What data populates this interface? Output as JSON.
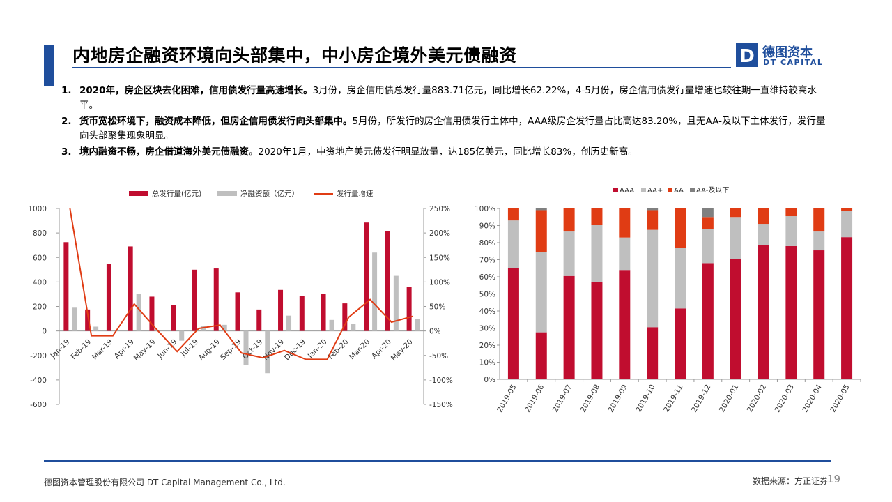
{
  "header": {
    "title": "内地房企融资环境向头部集中，中小房企境外美元债融资",
    "logo_cn": "德图资本",
    "logo_en": "DT CAPITAL",
    "logo_letter": "D"
  },
  "bullets": [
    {
      "num": "1.",
      "bold": "2020年，房企区块去化困难，信用债发行量高速增长。",
      "text": "3月份，房企信用债总发行量883.71亿元，同比增长62.22%，4-5月份，房企信用债发行量增速也较往期一直维持较高水平。"
    },
    {
      "num": "2.",
      "bold": "货币宽松环境下，融资成本降低，但房企信用债发行向头部集中。",
      "text": "5月份，所发行的房企信用债发行主体中，AAA级房企发行量占比高达83.20%，且无AA-及以下主体发行，发行量向头部聚集现象明显。"
    },
    {
      "num": "3.",
      "bold": "境内融资不畅，房企借道海外美元债融资。",
      "text": "2020年1月，中资地产美元债发行明显放量，达185亿美元，同比增长83%，创历史新高。"
    }
  ],
  "colors": {
    "brand": "#1f4e9c",
    "red": "#c00d2f",
    "gray": "#bfbfbf",
    "orange": "#e03c14",
    "darkgray": "#808080"
  },
  "chart_data": [
    {
      "type": "bar",
      "categories": [
        "Jan-19",
        "Feb-19",
        "Mar-19",
        "Apr-19",
        "May-19",
        "Jun-19",
        "Jul-19",
        "Aug-19",
        "Sep-19",
        "Oct-19",
        "Nov-19",
        "Dec-19",
        "Jan-20",
        "Feb-20",
        "Mar-20",
        "Apr-20",
        "May-20"
      ],
      "series": [
        {
          "name": "总发行量(亿元)",
          "kind": "bar",
          "axis": "left",
          "values": [
            725,
            175,
            545,
            690,
            280,
            210,
            500,
            510,
            315,
            175,
            335,
            285,
            300,
            225,
            885,
            815,
            360
          ]
        },
        {
          "name": "净融资额（亿元）",
          "kind": "bar",
          "axis": "left",
          "values": [
            190,
            35,
            0,
            305,
            0,
            -80,
            40,
            50,
            -280,
            -345,
            125,
            0,
            90,
            60,
            640,
            450,
            100
          ]
        },
        {
          "name": "发行量增速",
          "kind": "line",
          "axis": "right",
          "values": [
            250,
            -10,
            -10,
            55,
            5,
            -42,
            5,
            12,
            -45,
            -55,
            -40,
            -58,
            -58,
            28,
            64,
            18,
            30
          ]
        }
      ],
      "ylim": [
        -600,
        1000
      ],
      "yticks": [
        "1000",
        "800",
        "600",
        "400",
        "200",
        "0",
        "-200",
        "-400",
        "-600"
      ],
      "y2lim": [
        -150,
        250
      ],
      "y2ticks": [
        "250%",
        "200%",
        "150%",
        "100%",
        "50%",
        "0%",
        "-50%",
        "-100%",
        "-150%"
      ],
      "legend": "top"
    },
    {
      "type": "bar",
      "stacked": true,
      "categories": [
        "2019-05",
        "2019-06",
        "2019-07",
        "2019-08",
        "2019-09",
        "2019-10",
        "2019-11",
        "2019-12",
        "2020-01",
        "2020-02",
        "2020-03",
        "2020-04",
        "2020-05"
      ],
      "series": [
        {
          "name": "AAA",
          "values": [
            65,
            27.5,
            60.5,
            57,
            64,
            30.5,
            41.5,
            68,
            70.5,
            78.5,
            78,
            75.5,
            83.2
          ]
        },
        {
          "name": "AA+",
          "values": [
            28,
            47,
            26,
            33.5,
            19,
            57,
            35.5,
            20,
            24.5,
            12.5,
            17.5,
            11,
            15.3
          ]
        },
        {
          "name": "AA",
          "values": [
            7,
            24.5,
            13.5,
            9.5,
            17,
            11.5,
            23,
            7,
            5,
            9,
            4.5,
            13.5,
            1.5
          ]
        },
        {
          "name": "AA-及以下",
          "values": [
            0,
            1,
            0,
            0,
            0,
            1,
            0,
            5,
            0,
            0,
            0,
            0,
            0
          ]
        }
      ],
      "ylim": [
        0,
        100
      ],
      "yticks": [
        "100%",
        "90%",
        "80%",
        "70%",
        "60%",
        "50%",
        "40%",
        "30%",
        "20%",
        "10%",
        "0%"
      ],
      "legend": "top"
    }
  ],
  "footer": {
    "company": "德图资本管理股份有限公司  DT Capital Management  Co., Ltd.",
    "source": "数据来源：方正证券",
    "page": "19"
  }
}
